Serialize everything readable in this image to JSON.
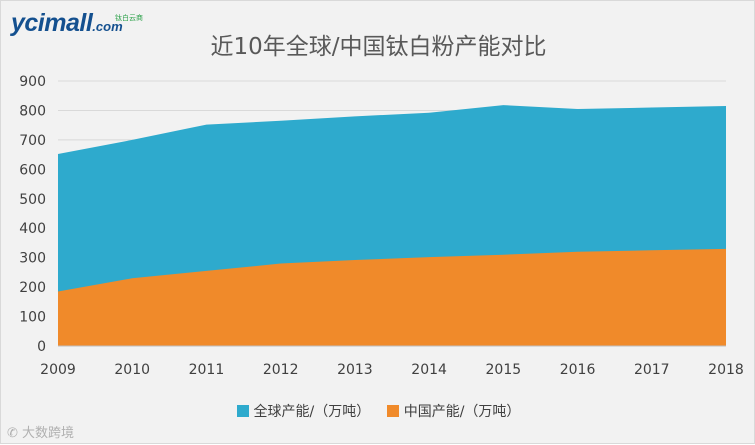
{
  "logo": {
    "text": "ycimall",
    "suffix": ".com",
    "tagline": "钛白云商"
  },
  "watermark": "大数跨境",
  "chart_data": {
    "type": "area",
    "title": "近10年全球/中国钛白粉产能对比",
    "x": [
      "2009",
      "2010",
      "2011",
      "2012",
      "2013",
      "2014",
      "2015",
      "2016",
      "2017",
      "2018"
    ],
    "ylim": [
      0,
      900
    ],
    "yticks": [
      0,
      100,
      200,
      300,
      400,
      500,
      600,
      700,
      800,
      900
    ],
    "series": [
      {
        "name": "全球产能/（万吨）",
        "color": "#2eaacd",
        "values": [
          652,
          700,
          752,
          765,
          780,
          792,
          818,
          805,
          810,
          815
        ]
      },
      {
        "name": "中国产能/（万吨）",
        "color": "#f08a2a",
        "values": [
          185,
          230,
          255,
          280,
          292,
          302,
          310,
          320,
          325,
          330
        ]
      }
    ],
    "legend": "bottom",
    "grid": true
  }
}
